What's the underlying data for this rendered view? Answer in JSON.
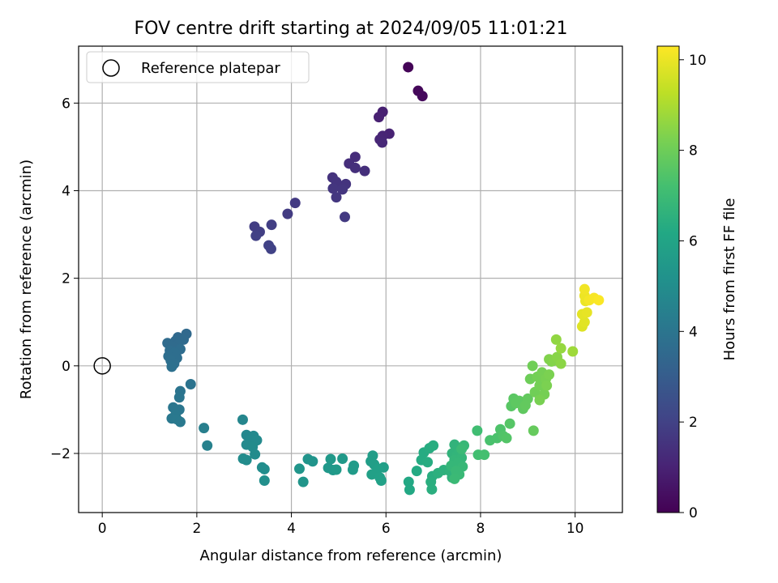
{
  "chart_data": {
    "type": "scatter",
    "title": "FOV centre drift starting at 2024/09/05 11:01:21",
    "xlabel": "Angular distance from reference (arcmin)",
    "ylabel": "Rotation from reference (arcmin)",
    "xlim": [
      -0.5,
      11.0
    ],
    "ylim": [
      -3.35,
      7.3
    ],
    "xticks": [
      "0",
      "2",
      "4",
      "6",
      "8",
      "10"
    ],
    "yticks": [
      "−2",
      "0",
      "2",
      "4",
      "6"
    ],
    "grid": true,
    "legend": {
      "position": "top-left",
      "entries": [
        "Reference platepar"
      ]
    },
    "reference_point": {
      "x": 0,
      "y": 0
    },
    "colorbar": {
      "label": "Hours from first FF file",
      "colormap": "viridis",
      "range": [
        0,
        10.3
      ],
      "ticks": [
        "0",
        "2",
        "4",
        "6",
        "8",
        "10"
      ]
    },
    "points": [
      {
        "x": 6.47,
        "y": 6.82,
        "h": 0.1
      },
      {
        "x": 6.68,
        "y": 6.28,
        "h": 0.2
      },
      {
        "x": 6.77,
        "y": 6.16,
        "h": 0.25
      },
      {
        "x": 5.93,
        "y": 5.8,
        "h": 0.9
      },
      {
        "x": 5.85,
        "y": 5.68,
        "h": 0.95
      },
      {
        "x": 6.07,
        "y": 5.3,
        "h": 1.0
      },
      {
        "x": 5.93,
        "y": 5.25,
        "h": 1.05
      },
      {
        "x": 5.87,
        "y": 5.17,
        "h": 1.1
      },
      {
        "x": 5.92,
        "y": 5.1,
        "h": 1.15
      },
      {
        "x": 5.35,
        "y": 4.77,
        "h": 1.3
      },
      {
        "x": 5.22,
        "y": 4.62,
        "h": 1.35
      },
      {
        "x": 5.35,
        "y": 4.52,
        "h": 1.4
      },
      {
        "x": 5.55,
        "y": 4.45,
        "h": 1.4
      },
      {
        "x": 4.87,
        "y": 4.3,
        "h": 1.5
      },
      {
        "x": 5.15,
        "y": 4.15,
        "h": 1.55
      },
      {
        "x": 4.95,
        "y": 4.2,
        "h": 1.55
      },
      {
        "x": 4.88,
        "y": 4.05,
        "h": 1.6
      },
      {
        "x": 5.08,
        "y": 4.03,
        "h": 1.6
      },
      {
        "x": 4.95,
        "y": 3.85,
        "h": 1.65
      },
      {
        "x": 5.13,
        "y": 3.4,
        "h": 1.7
      },
      {
        "x": 4.08,
        "y": 3.72,
        "h": 1.75
      },
      {
        "x": 3.92,
        "y": 3.47,
        "h": 1.8
      },
      {
        "x": 3.22,
        "y": 3.18,
        "h": 1.85
      },
      {
        "x": 3.58,
        "y": 3.22,
        "h": 1.9
      },
      {
        "x": 3.33,
        "y": 3.06,
        "h": 1.9
      },
      {
        "x": 3.25,
        "y": 2.97,
        "h": 1.95
      },
      {
        "x": 3.52,
        "y": 2.75,
        "h": 2.0
      },
      {
        "x": 3.57,
        "y": 2.67,
        "h": 2.0
      },
      {
        "x": 1.78,
        "y": 0.73,
        "h": 3.5
      },
      {
        "x": 1.6,
        "y": 0.65,
        "h": 3.5
      },
      {
        "x": 1.72,
        "y": 0.6,
        "h": 3.55
      },
      {
        "x": 1.55,
        "y": 0.57,
        "h": 3.55
      },
      {
        "x": 1.38,
        "y": 0.52,
        "h": 3.6
      },
      {
        "x": 1.6,
        "y": 0.48,
        "h": 3.6
      },
      {
        "x": 1.48,
        "y": 0.45,
        "h": 3.6
      },
      {
        "x": 1.65,
        "y": 0.38,
        "h": 3.65
      },
      {
        "x": 1.43,
        "y": 0.35,
        "h": 3.65
      },
      {
        "x": 1.53,
        "y": 0.3,
        "h": 3.7
      },
      {
        "x": 1.4,
        "y": 0.22,
        "h": 3.7
      },
      {
        "x": 1.58,
        "y": 0.18,
        "h": 3.7
      },
      {
        "x": 1.45,
        "y": 0.12,
        "h": 3.75
      },
      {
        "x": 1.52,
        "y": 0.05,
        "h": 3.75
      },
      {
        "x": 1.47,
        "y": -0.02,
        "h": 3.8
      },
      {
        "x": 1.87,
        "y": -0.42,
        "h": 3.9
      },
      {
        "x": 1.65,
        "y": -0.58,
        "h": 3.95
      },
      {
        "x": 1.63,
        "y": -0.72,
        "h": 4.0
      },
      {
        "x": 1.5,
        "y": -0.95,
        "h": 4.05
      },
      {
        "x": 1.63,
        "y": -1.0,
        "h": 4.05
      },
      {
        "x": 1.55,
        "y": -1.12,
        "h": 4.1
      },
      {
        "x": 1.47,
        "y": -1.2,
        "h": 4.1
      },
      {
        "x": 1.58,
        "y": -1.22,
        "h": 4.15
      },
      {
        "x": 1.65,
        "y": -1.28,
        "h": 4.15
      },
      {
        "x": 2.15,
        "y": -1.42,
        "h": 4.4
      },
      {
        "x": 2.22,
        "y": -1.82,
        "h": 4.5
      },
      {
        "x": 2.97,
        "y": -1.23,
        "h": 4.7
      },
      {
        "x": 3.05,
        "y": -1.58,
        "h": 4.75
      },
      {
        "x": 3.2,
        "y": -1.6,
        "h": 4.8
      },
      {
        "x": 3.15,
        "y": -1.68,
        "h": 4.8
      },
      {
        "x": 3.27,
        "y": -1.7,
        "h": 4.85
      },
      {
        "x": 3.05,
        "y": -1.8,
        "h": 4.85
      },
      {
        "x": 3.18,
        "y": -1.85,
        "h": 4.9
      },
      {
        "x": 3.23,
        "y": -2.02,
        "h": 4.9
      },
      {
        "x": 2.98,
        "y": -2.12,
        "h": 4.95
      },
      {
        "x": 3.05,
        "y": -2.15,
        "h": 4.95
      },
      {
        "x": 3.38,
        "y": -2.32,
        "h": 5.0
      },
      {
        "x": 3.43,
        "y": -2.36,
        "h": 5.0
      },
      {
        "x": 3.43,
        "y": -2.62,
        "h": 5.05
      },
      {
        "x": 4.35,
        "y": -2.13,
        "h": 5.3
      },
      {
        "x": 4.45,
        "y": -2.18,
        "h": 5.3
      },
      {
        "x": 4.17,
        "y": -2.35,
        "h": 5.35
      },
      {
        "x": 4.25,
        "y": -2.65,
        "h": 5.35
      },
      {
        "x": 4.78,
        "y": -2.33,
        "h": 5.45
      },
      {
        "x": 4.88,
        "y": -2.38,
        "h": 5.45
      },
      {
        "x": 4.83,
        "y": -2.13,
        "h": 5.5
      },
      {
        "x": 5.08,
        "y": -2.12,
        "h": 5.5
      },
      {
        "x": 4.95,
        "y": -2.37,
        "h": 5.55
      },
      {
        "x": 5.32,
        "y": -2.28,
        "h": 5.6
      },
      {
        "x": 5.3,
        "y": -2.37,
        "h": 5.6
      },
      {
        "x": 5.72,
        "y": -2.05,
        "h": 5.7
      },
      {
        "x": 5.68,
        "y": -2.18,
        "h": 5.7
      },
      {
        "x": 5.75,
        "y": -2.25,
        "h": 5.75
      },
      {
        "x": 5.95,
        "y": -2.32,
        "h": 5.75
      },
      {
        "x": 5.83,
        "y": -2.35,
        "h": 5.8
      },
      {
        "x": 5.7,
        "y": -2.48,
        "h": 5.8
      },
      {
        "x": 5.87,
        "y": -2.55,
        "h": 5.85
      },
      {
        "x": 5.9,
        "y": -2.62,
        "h": 5.85
      },
      {
        "x": 6.48,
        "y": -2.65,
        "h": 6.2
      },
      {
        "x": 6.5,
        "y": -2.83,
        "h": 6.2
      },
      {
        "x": 6.65,
        "y": -2.4,
        "h": 6.25
      },
      {
        "x": 6.75,
        "y": -2.15,
        "h": 6.3
      },
      {
        "x": 6.8,
        "y": -1.98,
        "h": 6.3
      },
      {
        "x": 6.88,
        "y": -2.2,
        "h": 6.35
      },
      {
        "x": 6.92,
        "y": -1.88,
        "h": 6.35
      },
      {
        "x": 7.0,
        "y": -1.82,
        "h": 6.4
      },
      {
        "x": 6.98,
        "y": -2.52,
        "h": 6.4
      },
      {
        "x": 6.95,
        "y": -2.65,
        "h": 6.45
      },
      {
        "x": 6.97,
        "y": -2.82,
        "h": 6.45
      },
      {
        "x": 7.1,
        "y": -2.45,
        "h": 6.5
      },
      {
        "x": 7.22,
        "y": -2.38,
        "h": 6.55
      },
      {
        "x": 7.35,
        "y": -2.4,
        "h": 6.6
      },
      {
        "x": 7.4,
        "y": -2.55,
        "h": 6.6
      },
      {
        "x": 7.45,
        "y": -1.8,
        "h": 6.65
      },
      {
        "x": 7.4,
        "y": -2.0,
        "h": 6.65
      },
      {
        "x": 7.5,
        "y": -2.05,
        "h": 6.7
      },
      {
        "x": 7.55,
        "y": -1.95,
        "h": 6.7
      },
      {
        "x": 7.45,
        "y": -2.15,
        "h": 6.75
      },
      {
        "x": 7.6,
        "y": -2.1,
        "h": 6.75
      },
      {
        "x": 7.52,
        "y": -2.22,
        "h": 6.8
      },
      {
        "x": 7.38,
        "y": -2.28,
        "h": 6.8
      },
      {
        "x": 7.65,
        "y": -1.82,
        "h": 6.85
      },
      {
        "x": 7.62,
        "y": -2.3,
        "h": 6.85
      },
      {
        "x": 7.48,
        "y": -2.4,
        "h": 6.9
      },
      {
        "x": 7.55,
        "y": -2.48,
        "h": 6.9
      },
      {
        "x": 7.45,
        "y": -2.58,
        "h": 6.95
      },
      {
        "x": 7.6,
        "y": -1.9,
        "h": 6.95
      },
      {
        "x": 7.93,
        "y": -1.48,
        "h": 7.1
      },
      {
        "x": 7.95,
        "y": -2.03,
        "h": 7.15
      },
      {
        "x": 8.08,
        "y": -2.03,
        "h": 7.2
      },
      {
        "x": 8.2,
        "y": -1.7,
        "h": 7.3
      },
      {
        "x": 8.35,
        "y": -1.65,
        "h": 7.35
      },
      {
        "x": 8.42,
        "y": -1.45,
        "h": 7.4
      },
      {
        "x": 8.48,
        "y": -1.6,
        "h": 7.45
      },
      {
        "x": 8.55,
        "y": -1.65,
        "h": 7.5
      },
      {
        "x": 8.62,
        "y": -1.32,
        "h": 7.55
      },
      {
        "x": 8.65,
        "y": -0.92,
        "h": 7.6
      },
      {
        "x": 8.7,
        "y": -0.75,
        "h": 7.65
      },
      {
        "x": 8.82,
        "y": -0.8,
        "h": 7.7
      },
      {
        "x": 8.75,
        "y": -0.85,
        "h": 7.7
      },
      {
        "x": 8.9,
        "y": -0.98,
        "h": 7.75
      },
      {
        "x": 9.0,
        "y": -0.75,
        "h": 7.8
      },
      {
        "x": 8.95,
        "y": -0.9,
        "h": 7.8
      },
      {
        "x": 9.12,
        "y": -1.48,
        "h": 7.85
      },
      {
        "x": 9.05,
        "y": -0.3,
        "h": 8.0
      },
      {
        "x": 9.1,
        "y": 0.0,
        "h": 8.05
      },
      {
        "x": 9.15,
        "y": -0.6,
        "h": 8.05
      },
      {
        "x": 9.2,
        "y": -0.25,
        "h": 8.1
      },
      {
        "x": 9.25,
        "y": -0.45,
        "h": 8.1
      },
      {
        "x": 9.3,
        "y": -0.15,
        "h": 8.15
      },
      {
        "x": 9.35,
        "y": -0.65,
        "h": 8.15
      },
      {
        "x": 9.25,
        "y": -0.78,
        "h": 8.2
      },
      {
        "x": 9.38,
        "y": -0.3,
        "h": 8.2
      },
      {
        "x": 9.4,
        "y": -0.45,
        "h": 8.25
      },
      {
        "x": 9.45,
        "y": -0.2,
        "h": 8.25
      },
      {
        "x": 9.5,
        "y": 0.1,
        "h": 8.3
      },
      {
        "x": 9.45,
        "y": 0.15,
        "h": 8.35
      },
      {
        "x": 9.55,
        "y": 0.12,
        "h": 8.4
      },
      {
        "x": 9.62,
        "y": 0.2,
        "h": 8.45
      },
      {
        "x": 9.7,
        "y": 0.05,
        "h": 8.5
      },
      {
        "x": 9.6,
        "y": 0.6,
        "h": 8.6
      },
      {
        "x": 9.7,
        "y": 0.4,
        "h": 8.65
      },
      {
        "x": 9.95,
        "y": 0.33,
        "h": 8.8
      },
      {
        "x": 10.15,
        "y": 0.9,
        "h": 9.8
      },
      {
        "x": 10.2,
        "y": 1.0,
        "h": 9.85
      },
      {
        "x": 10.15,
        "y": 1.18,
        "h": 9.9
      },
      {
        "x": 10.25,
        "y": 1.22,
        "h": 9.95
      },
      {
        "x": 10.22,
        "y": 1.48,
        "h": 10.0
      },
      {
        "x": 10.2,
        "y": 1.6,
        "h": 10.05
      },
      {
        "x": 10.2,
        "y": 1.75,
        "h": 10.1
      },
      {
        "x": 10.3,
        "y": 1.5,
        "h": 10.15
      },
      {
        "x": 10.4,
        "y": 1.55,
        "h": 10.2
      },
      {
        "x": 10.5,
        "y": 1.5,
        "h": 10.25
      }
    ]
  }
}
